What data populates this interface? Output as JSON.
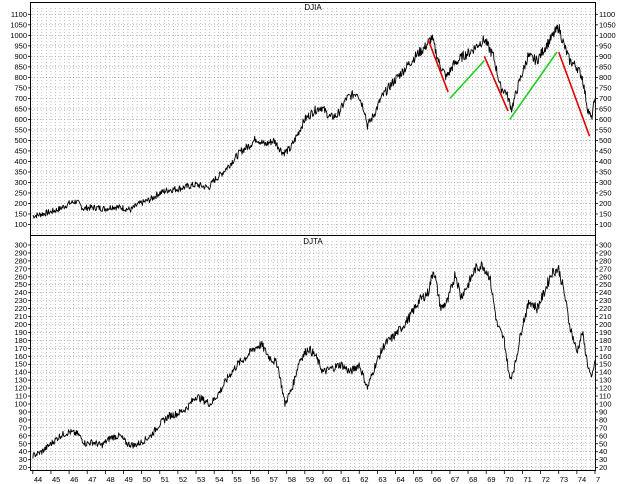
{
  "chart_data": [
    {
      "type": "line",
      "title": "DJIA",
      "xlabel": "",
      "ylabel": "",
      "xlim": [
        1943.9,
        1975.0
      ],
      "ylim": [
        50,
        1130
      ],
      "grid": true,
      "y_ticks": [
        100,
        150,
        200,
        250,
        300,
        350,
        400,
        450,
        500,
        550,
        600,
        650,
        700,
        750,
        800,
        850,
        900,
        950,
        1000,
        1050,
        1100
      ],
      "series": [
        {
          "color": "#000000",
          "x": [
            1944.0,
            1944.5,
            1945.0,
            1945.5,
            1946.0,
            1946.4,
            1946.8,
            1947.0,
            1947.5,
            1948.0,
            1948.4,
            1948.9,
            1949.4,
            1949.8,
            1950.5,
            1951.0,
            1951.5,
            1952.0,
            1952.5,
            1953.0,
            1953.7,
            1954.0,
            1954.5,
            1955.0,
            1955.5,
            1956.0,
            1956.3,
            1956.8,
            1957.3,
            1957.8,
            1958.2,
            1958.6,
            1959.0,
            1959.5,
            1959.9,
            1960.4,
            1960.8,
            1961.3,
            1961.9,
            1962.3,
            1962.45,
            1962.8,
            1963.2,
            1963.7,
            1964.2,
            1964.7,
            1965.2,
            1965.6,
            1966.0,
            1966.4,
            1966.8,
            1967.2,
            1967.7,
            1968.1,
            1968.6,
            1968.9,
            1969.4,
            1969.8,
            1970.1,
            1970.4,
            1970.8,
            1971.3,
            1971.8,
            1972.3,
            1972.7,
            1973.0,
            1973.3,
            1973.6,
            1974.0,
            1974.3,
            1974.6,
            1974.8,
            1975.0
          ],
          "values": [
            140,
            150,
            160,
            175,
            200,
            210,
            175,
            180,
            180,
            175,
            185,
            180,
            170,
            195,
            220,
            250,
            265,
            270,
            280,
            290,
            275,
            310,
            350,
            400,
            450,
            480,
            510,
            480,
            500,
            440,
            460,
            530,
            600,
            640,
            660,
            610,
            620,
            700,
            730,
            640,
            570,
            620,
            700,
            760,
            810,
            860,
            910,
            940,
            990,
            870,
            800,
            860,
            900,
            920,
            960,
            980,
            900,
            750,
            730,
            650,
            770,
            900,
            880,
            950,
            1000,
            1040,
            950,
            880,
            850,
            800,
            650,
            600,
            700
          ]
        }
      ],
      "annotations": [
        {
          "color": "#e00000",
          "x": [
            1965.8,
            1966.9
          ],
          "values": [
            980,
            730
          ]
        },
        {
          "color": "#22cc22",
          "x": [
            1967.0,
            1968.9
          ],
          "values": [
            700,
            880
          ]
        },
        {
          "color": "#e00000",
          "x": [
            1968.9,
            1970.2
          ],
          "values": [
            900,
            640
          ]
        },
        {
          "color": "#22cc22",
          "x": [
            1970.3,
            1972.9
          ],
          "values": [
            600,
            920
          ]
        },
        {
          "color": "#e00000",
          "x": [
            1973.0,
            1974.7
          ],
          "values": [
            920,
            520
          ]
        }
      ]
    },
    {
      "type": "line",
      "title": "DJTA",
      "xlabel": "",
      "ylabel": "",
      "xlim": [
        1943.9,
        1975.0
      ],
      "ylim": [
        17,
        305
      ],
      "grid": true,
      "y_ticks": [
        20,
        30,
        40,
        50,
        60,
        70,
        80,
        90,
        100,
        110,
        120,
        130,
        140,
        150,
        160,
        170,
        180,
        190,
        200,
        210,
        220,
        230,
        240,
        250,
        260,
        270,
        280,
        290,
        300
      ],
      "x_ticks": [
        "44",
        "45",
        "46",
        "47",
        "48",
        "49",
        "50",
        "51",
        "52",
        "53",
        "54",
        "55",
        "56",
        "57",
        "58",
        "59",
        "60",
        "61",
        "62",
        "63",
        "64",
        "65",
        "66",
        "67",
        "68",
        "69",
        "70",
        "71",
        "72",
        "73",
        "74",
        "7"
      ],
      "series": [
        {
          "color": "#000000",
          "x": [
            1944.0,
            1944.5,
            1945.0,
            1945.5,
            1946.0,
            1946.5,
            1946.9,
            1947.3,
            1947.8,
            1948.3,
            1948.8,
            1949.2,
            1949.6,
            1950.0,
            1950.5,
            1951.0,
            1951.5,
            1952.0,
            1952.5,
            1953.0,
            1953.8,
            1954.3,
            1954.8,
            1955.3,
            1955.8,
            1956.2,
            1956.6,
            1957.0,
            1957.5,
            1957.9,
            1958.3,
            1958.7,
            1959.2,
            1959.6,
            1960.0,
            1960.5,
            1961.0,
            1961.5,
            1962.0,
            1962.45,
            1962.9,
            1963.4,
            1963.9,
            1964.3,
            1964.8,
            1965.3,
            1965.8,
            1966.1,
            1966.5,
            1966.9,
            1967.3,
            1967.6,
            1968.0,
            1968.4,
            1968.8,
            1969.2,
            1969.6,
            1970.0,
            1970.3,
            1970.6,
            1971.0,
            1971.4,
            1971.8,
            1972.2,
            1972.6,
            1973.0,
            1973.3,
            1973.6,
            1974.0,
            1974.3,
            1974.6,
            1974.8,
            1975.0
          ],
          "values": [
            35,
            40,
            50,
            60,
            65,
            62,
            50,
            52,
            48,
            58,
            60,
            50,
            48,
            52,
            60,
            75,
            85,
            88,
            95,
            110,
            100,
            115,
            135,
            150,
            160,
            170,
            175,
            160,
            150,
            100,
            120,
            155,
            170,
            160,
            140,
            145,
            150,
            140,
            150,
            120,
            150,
            175,
            185,
            195,
            210,
            230,
            240,
            270,
            220,
            230,
            265,
            235,
            250,
            270,
            275,
            260,
            200,
            180,
            130,
            150,
            200,
            230,
            220,
            240,
            265,
            270,
            240,
            200,
            165,
            190,
            150,
            130,
            155
          ]
        }
      ]
    }
  ]
}
